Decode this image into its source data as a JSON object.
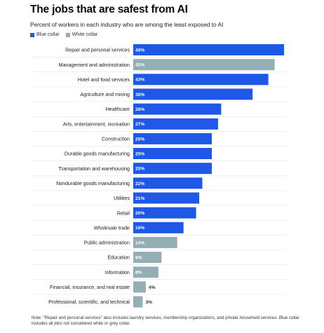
{
  "header": {
    "title": "The jobs that are safest from AI",
    "subtitle": "Percent of workers in each industry who are among the least exposed to AI"
  },
  "legend": [
    {
      "label": "Blue collar",
      "color": "#1f57e7"
    },
    {
      "label": "White collar",
      "color": "#94aeb3"
    }
  ],
  "note": "Note: “Repair and personal services” also includes laundry services, membership organizations, and private household services. Blue collar includes all jobs not considered white or grey collar.",
  "chart_data": {
    "type": "bar",
    "orientation": "horizontal",
    "title": "The jobs that are safest from AI",
    "subtitle": "Percent of workers in each industry who are among the least exposed to AI",
    "xlabel": "",
    "ylabel": "",
    "xlim": [
      0,
      48
    ],
    "grid": false,
    "legend_position": "top-left",
    "series": [
      {
        "name": "Blue collar",
        "color": "#1f57e7"
      },
      {
        "name": "White collar",
        "color": "#94aeb3"
      }
    ],
    "categories": [
      "Repair and personal services",
      "Management and administration",
      "Hotel and food services",
      "Agriculture and mining",
      "Healthcare",
      "Arts, entertainment, recreation",
      "Construction",
      "Durable goods manufacturing",
      "Transportation and warehousing",
      "Nondurable goods manufacturing",
      "Utilities",
      "Retail",
      "Wholesale trade",
      "Public administration",
      "Education",
      "Information",
      "Financial, insurance, and real estate",
      "Professional, scientific, and technical"
    ],
    "values": [
      48,
      45,
      43,
      38,
      28,
      27,
      25,
      25,
      25,
      22,
      21,
      20,
      16,
      14,
      9,
      8,
      4,
      3
    ],
    "value_labels": [
      "48%",
      "45%",
      "43%",
      "38%",
      "28%",
      "27%",
      "25%",
      "25%",
      "25%",
      "22%",
      "21%",
      "20%",
      "16%",
      "14%",
      "9%",
      "8%",
      "4%",
      "3%"
    ],
    "collar": [
      "Blue collar",
      "White collar",
      "Blue collar",
      "Blue collar",
      "Blue collar",
      "Blue collar",
      "Blue collar",
      "Blue collar",
      "Blue collar",
      "Blue collar",
      "Blue collar",
      "Blue collar",
      "Blue collar",
      "White collar",
      "White collar",
      "White collar",
      "White collar",
      "White collar"
    ]
  }
}
